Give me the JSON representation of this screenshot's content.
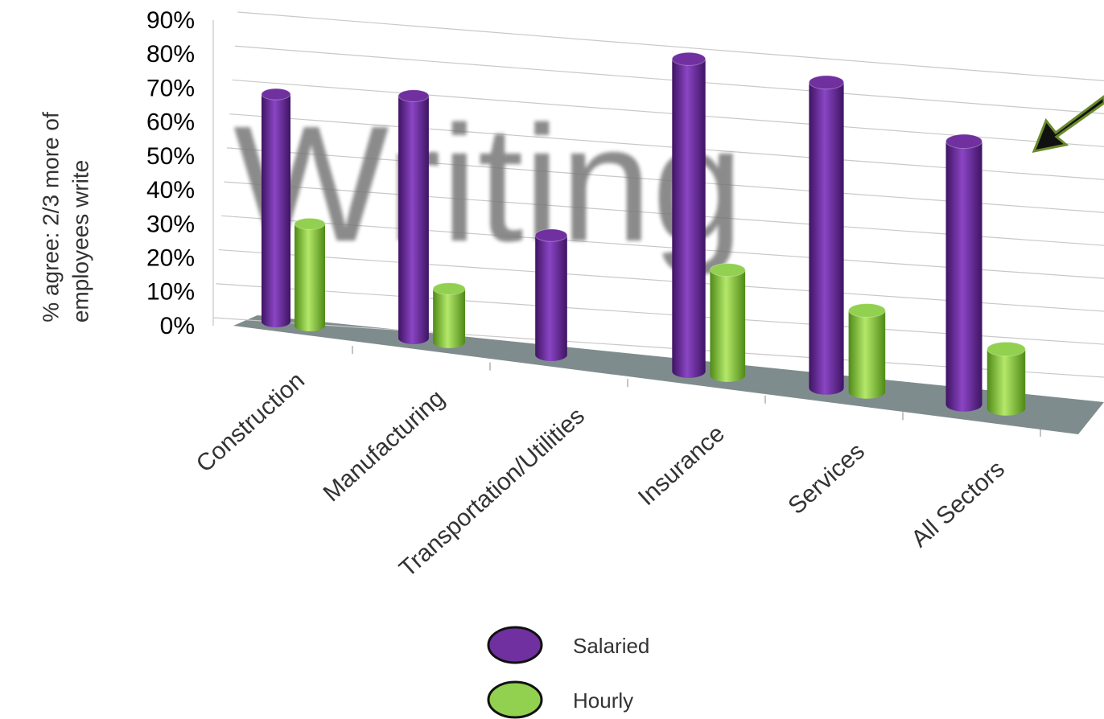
{
  "chart_data": {
    "type": "bar3d",
    "ylabel": [
      "% agree: 2/3 more of",
      "employees write"
    ],
    "watermark": "Writing",
    "categories": [
      "Construction",
      "Manufacturing",
      "Transportation/Utilities",
      "Insurance",
      "Services",
      "All Sectors"
    ],
    "series": [
      {
        "name": "Salaried",
        "color": "#7030a0",
        "values": [
          67,
          68,
          32,
          80,
          75,
          62
        ]
      },
      {
        "name": "Hourly",
        "color": "#92d050",
        "values": [
          30,
          15,
          null,
          27,
          20,
          14
        ]
      }
    ],
    "ylim": [
      0,
      90
    ],
    "yticks": [
      {
        "value": 0,
        "label": "0%"
      },
      {
        "value": 10,
        "label": "10%"
      },
      {
        "value": 20,
        "label": "20%"
      },
      {
        "value": 30,
        "label": "30%"
      },
      {
        "value": 40,
        "label": "40%"
      },
      {
        "value": 50,
        "label": "50%"
      },
      {
        "value": 60,
        "label": "60%"
      },
      {
        "value": 70,
        "label": "70%"
      },
      {
        "value": 80,
        "label": "80%"
      },
      {
        "value": 90,
        "label": "90%"
      }
    ],
    "grid": true
  }
}
